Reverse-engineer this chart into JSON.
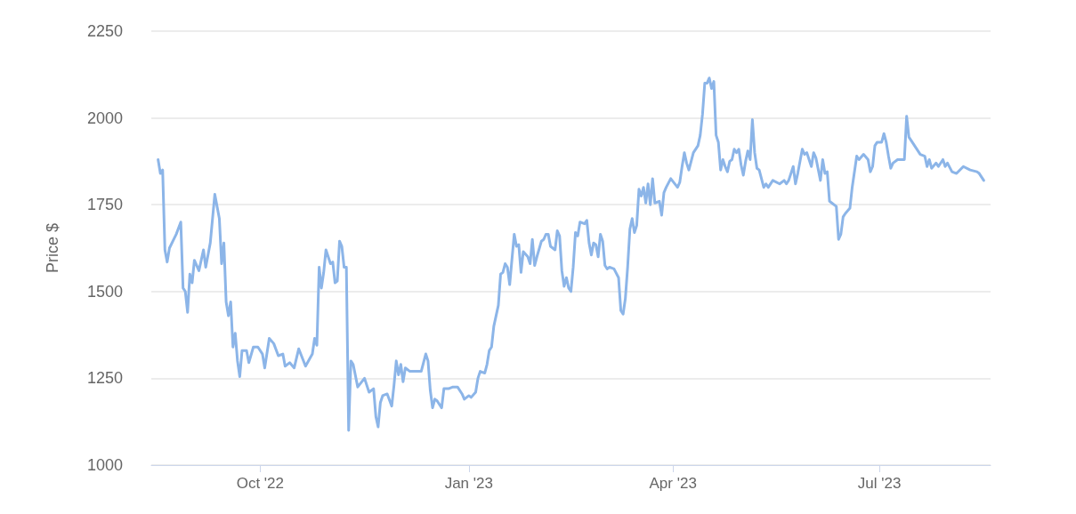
{
  "chart_data": {
    "type": "line",
    "ylabel": "Price $",
    "color": "#8cb5e8",
    "marker": "none",
    "line_style": "solid",
    "grid": "y",
    "xlim": [
      "2022-08-14",
      "2023-08-19"
    ],
    "xticks": [
      {
        "value": "2022-10-01",
        "label": "Oct '22"
      },
      {
        "value": "2023-01-01",
        "label": "Jan '23"
      },
      {
        "value": "2023-04-01",
        "label": "Apr '23"
      },
      {
        "value": "2023-07-01",
        "label": "Jul '23"
      }
    ],
    "ylim": [
      1000,
      2250
    ],
    "yticks": [
      1000,
      1250,
      1500,
      1750,
      2000,
      2250
    ],
    "x": [
      "2022-08-17",
      "2022-08-18",
      "2022-08-19",
      "2022-08-20",
      "2022-08-21",
      "2022-08-22",
      "2022-08-25",
      "2022-08-27",
      "2022-08-28",
      "2022-08-29",
      "2022-08-30",
      "2022-08-31",
      "2022-09-01",
      "2022-09-02",
      "2022-09-04",
      "2022-09-06",
      "2022-09-07",
      "2022-09-09",
      "2022-09-11",
      "2022-09-13",
      "2022-09-14",
      "2022-09-15",
      "2022-09-16",
      "2022-09-17",
      "2022-09-18",
      "2022-09-19",
      "2022-09-20",
      "2022-09-21",
      "2022-09-22",
      "2022-09-23",
      "2022-09-25",
      "2022-09-26",
      "2022-09-28",
      "2022-09-30",
      "2022-10-02",
      "2022-10-03",
      "2022-10-05",
      "2022-10-07",
      "2022-10-09",
      "2022-10-11",
      "2022-10-12",
      "2022-10-14",
      "2022-10-16",
      "2022-10-18",
      "2022-10-21",
      "2022-10-24",
      "2022-10-25",
      "2022-10-26",
      "2022-10-27",
      "2022-10-28",
      "2022-10-29",
      "2022-10-30",
      "2022-11-01",
      "2022-11-02",
      "2022-11-03",
      "2022-11-04",
      "2022-11-05",
      "2022-11-06",
      "2022-11-07",
      "2022-11-08",
      "2022-11-09",
      "2022-11-10",
      "2022-11-11",
      "2022-11-13",
      "2022-11-16",
      "2022-11-18",
      "2022-11-20",
      "2022-11-21",
      "2022-11-22",
      "2022-11-23",
      "2022-11-24",
      "2022-11-26",
      "2022-11-28",
      "2022-11-29",
      "2022-11-30",
      "2022-12-01",
      "2022-12-02",
      "2022-12-03",
      "2022-12-04",
      "2022-12-06",
      "2022-12-09",
      "2022-12-11",
      "2022-12-13",
      "2022-12-14",
      "2022-12-15",
      "2022-12-16",
      "2022-12-17",
      "2022-12-18",
      "2022-12-20",
      "2022-12-21",
      "2022-12-23",
      "2022-12-25",
      "2022-12-27",
      "2022-12-29",
      "2022-12-30",
      "2023-01-01",
      "2023-01-02",
      "2023-01-04",
      "2023-01-05",
      "2023-01-06",
      "2023-01-08",
      "2023-01-09",
      "2023-01-10",
      "2023-01-11",
      "2023-01-12",
      "2023-01-13",
      "2023-01-14",
      "2023-01-15",
      "2023-01-16",
      "2023-01-17",
      "2023-01-18",
      "2023-01-19",
      "2023-01-21",
      "2023-01-22",
      "2023-01-23",
      "2023-01-24",
      "2023-01-25",
      "2023-01-27",
      "2023-01-28",
      "2023-01-29",
      "2023-01-30",
      "2023-01-31",
      "2023-02-02",
      "2023-02-03",
      "2023-02-04",
      "2023-02-05",
      "2023-02-06",
      "2023-02-08",
      "2023-02-09",
      "2023-02-10",
      "2023-02-11",
      "2023-02-12",
      "2023-02-13",
      "2023-02-14",
      "2023-02-15",
      "2023-02-16",
      "2023-02-17",
      "2023-02-18",
      "2023-02-19",
      "2023-02-21",
      "2023-02-22",
      "2023-02-23",
      "2023-02-24",
      "2023-02-25",
      "2023-02-26",
      "2023-02-27",
      "2023-02-28",
      "2023-03-01",
      "2023-03-02",
      "2023-03-03",
      "2023-03-04",
      "2023-03-06",
      "2023-03-08",
      "2023-03-09",
      "2023-03-10",
      "2023-03-11",
      "2023-03-12",
      "2023-03-13",
      "2023-03-14",
      "2023-03-15",
      "2023-03-16",
      "2023-03-17",
      "2023-03-18",
      "2023-03-19",
      "2023-03-20",
      "2023-03-21",
      "2023-03-22",
      "2023-03-23",
      "2023-03-24",
      "2023-03-26",
      "2023-03-27",
      "2023-03-28",
      "2023-03-29",
      "2023-03-31",
      "2023-04-03",
      "2023-04-04",
      "2023-04-05",
      "2023-04-06",
      "2023-04-07",
      "2023-04-08",
      "2023-04-10",
      "2023-04-12",
      "2023-04-13",
      "2023-04-14",
      "2023-04-15",
      "2023-04-16",
      "2023-04-17",
      "2023-04-18",
      "2023-04-19",
      "2023-04-20",
      "2023-04-21",
      "2023-04-22",
      "2023-04-23",
      "2023-04-24",
      "2023-04-25",
      "2023-04-26",
      "2023-04-27",
      "2023-04-28",
      "2023-04-29",
      "2023-04-30",
      "2023-05-01",
      "2023-05-02",
      "2023-05-03",
      "2023-05-04",
      "2023-05-05",
      "2023-05-06",
      "2023-05-07",
      "2023-05-08",
      "2023-05-09",
      "2023-05-11",
      "2023-05-12",
      "2023-05-13",
      "2023-05-15",
      "2023-05-18",
      "2023-05-20",
      "2023-05-21",
      "2023-05-22",
      "2023-05-24",
      "2023-05-25",
      "2023-05-26",
      "2023-05-28",
      "2023-05-29",
      "2023-05-30",
      "2023-05-31",
      "2023-06-01",
      "2023-06-02",
      "2023-06-03",
      "2023-06-05",
      "2023-06-06",
      "2023-06-07",
      "2023-06-08",
      "2023-06-09",
      "2023-06-10",
      "2023-06-12",
      "2023-06-13",
      "2023-06-14",
      "2023-06-15",
      "2023-06-16",
      "2023-06-18",
      "2023-06-19",
      "2023-06-21",
      "2023-06-22",
      "2023-06-24",
      "2023-06-26",
      "2023-06-27",
      "2023-06-28",
      "2023-06-29",
      "2023-06-30",
      "2023-07-02",
      "2023-07-03",
      "2023-07-04",
      "2023-07-05",
      "2023-07-06",
      "2023-07-07",
      "2023-07-09",
      "2023-07-12",
      "2023-07-13",
      "2023-07-14",
      "2023-07-16",
      "2023-07-19",
      "2023-07-21",
      "2023-07-22",
      "2023-07-23",
      "2023-07-24",
      "2023-07-26",
      "2023-07-27",
      "2023-07-29",
      "2023-07-30",
      "2023-07-31",
      "2023-08-02",
      "2023-08-04",
      "2023-08-07",
      "2023-08-10",
      "2023-08-13",
      "2023-08-14",
      "2023-08-16"
    ],
    "values": [
      1880,
      1840,
      1850,
      1620,
      1585,
      1625,
      1665,
      1700,
      1510,
      1500,
      1440,
      1550,
      1525,
      1590,
      1560,
      1620,
      1570,
      1640,
      1780,
      1710,
      1580,
      1640,
      1470,
      1430,
      1470,
      1340,
      1380,
      1300,
      1255,
      1330,
      1330,
      1295,
      1340,
      1340,
      1320,
      1280,
      1365,
      1350,
      1315,
      1320,
      1285,
      1295,
      1280,
      1335,
      1285,
      1320,
      1365,
      1345,
      1570,
      1510,
      1555,
      1620,
      1580,
      1585,
      1525,
      1530,
      1645,
      1630,
      1570,
      1570,
      1100,
      1300,
      1290,
      1225,
      1250,
      1210,
      1220,
      1140,
      1110,
      1180,
      1200,
      1205,
      1170,
      1230,
      1300,
      1260,
      1290,
      1240,
      1280,
      1270,
      1270,
      1270,
      1320,
      1300,
      1215,
      1165,
      1190,
      1185,
      1165,
      1220,
      1220,
      1225,
      1225,
      1205,
      1190,
      1200,
      1195,
      1210,
      1250,
      1270,
      1265,
      1290,
      1330,
      1340,
      1400,
      1430,
      1460,
      1550,
      1555,
      1580,
      1570,
      1520,
      1665,
      1630,
      1635,
      1555,
      1615,
      1600,
      1580,
      1650,
      1575,
      1600,
      1645,
      1650,
      1665,
      1665,
      1630,
      1620,
      1675,
      1660,
      1560,
      1515,
      1540,
      1510,
      1500,
      1570,
      1670,
      1660,
      1700,
      1695,
      1705,
      1640,
      1605,
      1640,
      1635,
      1600,
      1665,
      1645,
      1575,
      1565,
      1570,
      1565,
      1540,
      1445,
      1435,
      1480,
      1570,
      1680,
      1710,
      1670,
      1690,
      1795,
      1775,
      1800,
      1755,
      1810,
      1750,
      1825,
      1755,
      1760,
      1720,
      1785,
      1800,
      1825,
      1800,
      1815,
      1860,
      1900,
      1870,
      1850,
      1900,
      1920,
      1950,
      2010,
      2100,
      2100,
      2115,
      2085,
      2105,
      1950,
      1930,
      1850,
      1880,
      1860,
      1845,
      1875,
      1880,
      1910,
      1900,
      1910,
      1865,
      1835,
      1875,
      1905,
      1880,
      1995,
      1900,
      1855,
      1850,
      1800,
      1810,
      1800,
      1820,
      1810,
      1820,
      1810,
      1820,
      1860,
      1810,
      1840,
      1910,
      1895,
      1900,
      1880,
      1860,
      1900,
      1885,
      1820,
      1880,
      1840,
      1845,
      1760,
      1755,
      1745,
      1650,
      1665,
      1715,
      1725,
      1740,
      1800,
      1890,
      1880,
      1895,
      1880,
      1845,
      1860,
      1920,
      1930,
      1930,
      1955,
      1930,
      1890,
      1855,
      1870,
      1880,
      1880,
      2005,
      1945,
      1925,
      1895,
      1890,
      1860,
      1880,
      1855,
      1870,
      1860,
      1880,
      1860,
      1870,
      1845,
      1840,
      1860,
      1850,
      1845,
      1840,
      1820
    ]
  }
}
